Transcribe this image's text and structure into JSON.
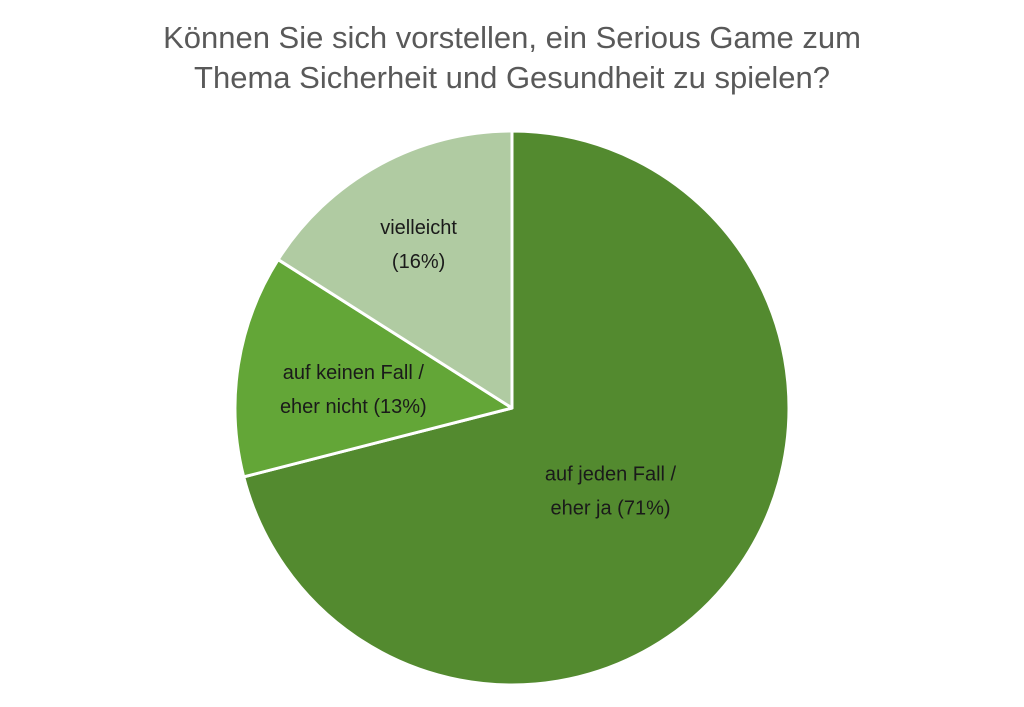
{
  "title": {
    "line1": "Können Sie sich vorstellen, ein Serious Game zum",
    "line2": "Thema Sicherheit und Gesundheit zu spielen?"
  },
  "chart_data": {
    "type": "pie",
    "title": "Können Sie sich vorstellen, ein Serious Game zum Thema Sicherheit und Gesundheit zu spielen?",
    "slices": [
      {
        "label_line1": "auf jeden Fall /",
        "label_line2": "eher ja (71%)",
        "value": 71,
        "color": "#538a2f"
      },
      {
        "label_line1": "auf keinen Fall /",
        "label_line2": "eher nicht (13%)",
        "value": 13,
        "color": "#63a637"
      },
      {
        "label_line1": "vielleicht",
        "label_line2": "(16%)",
        "value": 16,
        "color": "#b0cba2"
      }
    ],
    "start": "top, clockwise",
    "legend": "none"
  }
}
